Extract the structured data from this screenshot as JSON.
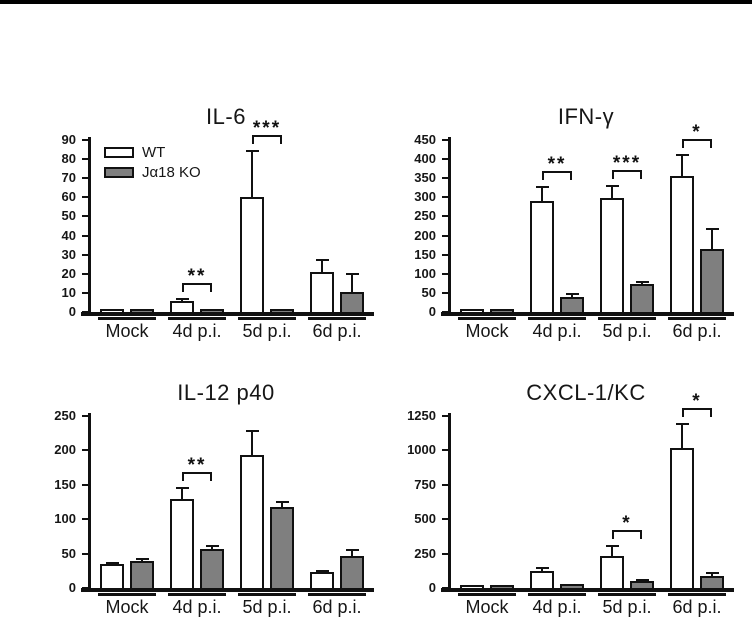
{
  "page": {
    "background_color": "#ffffff",
    "top_rule_color": "#000000"
  },
  "legend": {
    "items": [
      {
        "label": "WT",
        "fill": "#ffffff"
      },
      {
        "label": "Jα18 KO",
        "fill": "#7f7f7f"
      }
    ]
  },
  "chart_data": [
    {
      "type": "bar",
      "title": "IL-6",
      "xlabel": "",
      "ylabel": "",
      "categories": [
        "Mock",
        "4d p.i.",
        "5d p.i.",
        "6d p.i."
      ],
      "series": [
        {
          "name": "WT",
          "fill": "#ffffff",
          "values": [
            0.5,
            6,
            60,
            21
          ],
          "errors": [
            0,
            1.5,
            25,
            7
          ]
        },
        {
          "name": "Jα18 KO",
          "fill": "#7f7f7f",
          "values": [
            1,
            0.5,
            1.5,
            10.5
          ],
          "errors": [
            0,
            0,
            0.5,
            10
          ]
        }
      ],
      "ylim": [
        0,
        90
      ],
      "ystep": 10,
      "grid": false,
      "legend": true,
      "legend_position": "top-left-inside",
      "significance": [
        {
          "category_index": 1,
          "label": "**"
        },
        {
          "category_index": 2,
          "label": "***"
        }
      ]
    },
    {
      "type": "bar",
      "title": "IFN-γ",
      "xlabel": "",
      "ylabel": "",
      "categories": [
        "Mock",
        "4d p.i.",
        "5d p.i.",
        "6d p.i."
      ],
      "series": [
        {
          "name": "WT",
          "fill": "#ffffff",
          "values": [
            5,
            290,
            297,
            356
          ],
          "errors": [
            0,
            40,
            35,
            58
          ]
        },
        {
          "name": "Jα18 KO",
          "fill": "#7f7f7f",
          "values": [
            4,
            38,
            72,
            164
          ],
          "errors": [
            0,
            12,
            10,
            55
          ]
        }
      ],
      "ylim": [
        0,
        450
      ],
      "ystep": 50,
      "grid": false,
      "legend": false,
      "significance": [
        {
          "category_index": 1,
          "label": "**"
        },
        {
          "category_index": 2,
          "label": "***"
        },
        {
          "category_index": 3,
          "label": "*"
        }
      ]
    },
    {
      "type": "bar",
      "title": "IL-12 p40",
      "xlabel": "",
      "ylabel": "",
      "categories": [
        "Mock",
        "4d p.i.",
        "5d p.i.",
        "6d p.i."
      ],
      "series": [
        {
          "name": "WT",
          "fill": "#ffffff",
          "values": [
            35,
            130,
            194,
            23
          ],
          "errors": [
            3,
            17,
            36,
            3
          ]
        },
        {
          "name": "Jα18 KO",
          "fill": "#7f7f7f",
          "values": [
            39,
            56,
            118,
            47
          ],
          "errors": [
            4,
            6,
            8,
            9
          ]
        }
      ],
      "ylim": [
        0,
        250
      ],
      "ystep": 50,
      "grid": false,
      "legend": false,
      "significance": [
        {
          "category_index": 1,
          "label": "**"
        }
      ]
    },
    {
      "type": "bar",
      "title": "CXCL-1/KC",
      "xlabel": "",
      "ylabel": "",
      "categories": [
        "Mock",
        "4d p.i.",
        "5d p.i.",
        "6d p.i."
      ],
      "series": [
        {
          "name": "WT",
          "fill": "#ffffff",
          "values": [
            20,
            125,
            230,
            1020
          ],
          "errors": [
            8,
            25,
            80,
            180
          ]
        },
        {
          "name": "Jα18 KO",
          "fill": "#7f7f7f",
          "values": [
            15,
            30,
            50,
            85
          ],
          "errors": [
            5,
            10,
            12,
            35
          ]
        }
      ],
      "ylim": [
        0,
        1250
      ],
      "ystep": 250,
      "grid": false,
      "legend": false,
      "significance": [
        {
          "category_index": 2,
          "label": "*"
        },
        {
          "category_index": 3,
          "label": "*"
        }
      ]
    }
  ]
}
